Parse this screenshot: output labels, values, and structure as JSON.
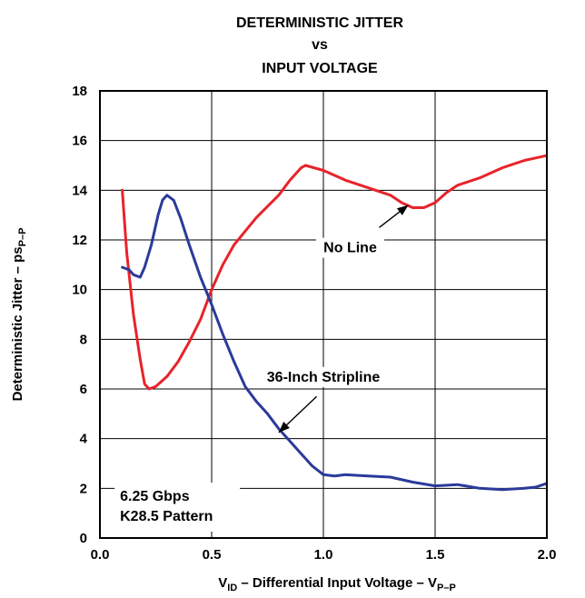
{
  "chart_data": {
    "type": "line",
    "title_lines": [
      "DETERMINISTIC JITTER",
      "vs",
      "INPUT VOLTAGE"
    ],
    "xlabel": {
      "main": "V",
      "sub": "ID",
      "mid": " – Differential Input Voltage – V",
      "sub2": "P–P"
    },
    "ylabel": {
      "main": "Deterministic Jitter – ps",
      "sub": "P–P"
    },
    "xlim": [
      0,
      2
    ],
    "ylim": [
      0,
      18
    ],
    "x_ticks": [
      0,
      0.5,
      1,
      1.5,
      2
    ],
    "x_tick_labels": [
      "0.0",
      "0.5",
      "1.0",
      "1.5",
      "2.0"
    ],
    "y_ticks": [
      0,
      2,
      4,
      6,
      8,
      10,
      12,
      14,
      16,
      18
    ],
    "y_tick_labels": [
      "0",
      "2",
      "4",
      "6",
      "8",
      "10",
      "12",
      "14",
      "16",
      "18"
    ],
    "grid": true,
    "series": [
      {
        "name": "No Line",
        "color": "#e8232a",
        "points": [
          [
            0.1,
            14.0
          ],
          [
            0.12,
            11.5
          ],
          [
            0.15,
            9.0
          ],
          [
            0.18,
            7.2
          ],
          [
            0.2,
            6.2
          ],
          [
            0.22,
            6.0
          ],
          [
            0.25,
            6.1
          ],
          [
            0.3,
            6.5
          ],
          [
            0.35,
            7.1
          ],
          [
            0.4,
            7.9
          ],
          [
            0.45,
            8.8
          ],
          [
            0.5,
            10.0
          ],
          [
            0.55,
            11.0
          ],
          [
            0.6,
            11.8
          ],
          [
            0.7,
            12.9
          ],
          [
            0.8,
            13.8
          ],
          [
            0.85,
            14.4
          ],
          [
            0.9,
            14.9
          ],
          [
            0.92,
            15.0
          ],
          [
            1.0,
            14.8
          ],
          [
            1.1,
            14.4
          ],
          [
            1.2,
            14.1
          ],
          [
            1.3,
            13.8
          ],
          [
            1.35,
            13.5
          ],
          [
            1.4,
            13.3
          ],
          [
            1.45,
            13.3
          ],
          [
            1.5,
            13.5
          ],
          [
            1.55,
            13.9
          ],
          [
            1.6,
            14.2
          ],
          [
            1.7,
            14.5
          ],
          [
            1.8,
            14.9
          ],
          [
            1.9,
            15.2
          ],
          [
            1.95,
            15.3
          ],
          [
            2.0,
            15.4
          ]
        ]
      },
      {
        "name": "36-Inch Stripline",
        "color": "#2b3a9a",
        "points": [
          [
            0.1,
            10.9
          ],
          [
            0.13,
            10.8
          ],
          [
            0.15,
            10.6
          ],
          [
            0.18,
            10.5
          ],
          [
            0.2,
            10.9
          ],
          [
            0.23,
            11.8
          ],
          [
            0.26,
            13.0
          ],
          [
            0.28,
            13.6
          ],
          [
            0.3,
            13.8
          ],
          [
            0.33,
            13.6
          ],
          [
            0.36,
            12.9
          ],
          [
            0.4,
            11.8
          ],
          [
            0.45,
            10.5
          ],
          [
            0.5,
            9.4
          ],
          [
            0.55,
            8.2
          ],
          [
            0.6,
            7.1
          ],
          [
            0.65,
            6.1
          ],
          [
            0.7,
            5.5
          ],
          [
            0.75,
            5.0
          ],
          [
            0.8,
            4.4
          ],
          [
            0.85,
            3.9
          ],
          [
            0.9,
            3.4
          ],
          [
            0.95,
            2.9
          ],
          [
            1.0,
            2.55
          ],
          [
            1.05,
            2.5
          ],
          [
            1.1,
            2.55
          ],
          [
            1.2,
            2.5
          ],
          [
            1.3,
            2.45
          ],
          [
            1.4,
            2.25
          ],
          [
            1.5,
            2.1
          ],
          [
            1.6,
            2.15
          ],
          [
            1.7,
            2.0
          ],
          [
            1.8,
            1.95
          ],
          [
            1.9,
            2.0
          ],
          [
            1.95,
            2.05
          ],
          [
            2.0,
            2.2
          ]
        ]
      }
    ],
    "annotations": [
      {
        "text": "No Line",
        "label_at": [
          1.12,
          11.5
        ],
        "arrow_from": [
          1.25,
          12.5
        ],
        "arrow_to": [
          1.38,
          13.4
        ]
      },
      {
        "text": "36-Inch Stripline",
        "label_at": [
          1.0,
          6.3
        ],
        "arrow_from": [
          0.97,
          5.7
        ],
        "arrow_to": [
          0.8,
          4.25
        ]
      },
      {
        "text_lines": [
          "6.25 Gbps",
          "K28.5 Pattern"
        ],
        "label_at": [
          0.09,
          1.5
        ]
      }
    ]
  }
}
